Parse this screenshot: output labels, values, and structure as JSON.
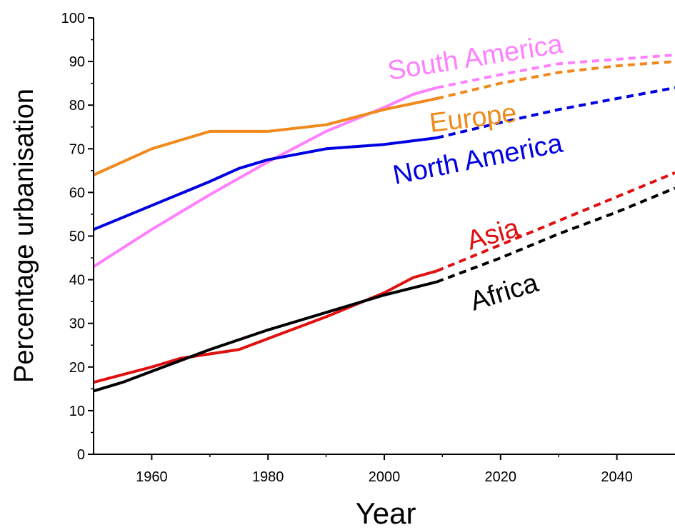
{
  "chart_data": {
    "type": "line",
    "title": "",
    "xlabel": "Year",
    "ylabel": "Percentage urbanisation",
    "xlim": [
      1950,
      2050
    ],
    "ylim": [
      0,
      100
    ],
    "x_ticks": [
      1960,
      1980,
      2000,
      2020,
      2040
    ],
    "y_ticks": [
      0,
      10,
      20,
      30,
      40,
      50,
      60,
      70,
      80,
      90,
      100
    ],
    "grid": false,
    "legend": "inline labels",
    "series": [
      {
        "name": "South America",
        "color": "#ff80ff",
        "observed": [
          [
            1950,
            43
          ],
          [
            1960,
            51.5
          ],
          [
            1970,
            59.5
          ],
          [
            1980,
            67
          ],
          [
            1990,
            74
          ],
          [
            2000,
            79.5
          ],
          [
            2005,
            82.5
          ],
          [
            2009,
            84
          ]
        ],
        "projected": [
          [
            2009,
            84
          ],
          [
            2020,
            87
          ],
          [
            2030,
            89.5
          ],
          [
            2040,
            90.5
          ],
          [
            2050,
            91.5
          ]
        ]
      },
      {
        "name": "Europe",
        "color": "#f08a1c",
        "observed": [
          [
            1950,
            64
          ],
          [
            1960,
            70
          ],
          [
            1970,
            74
          ],
          [
            1980,
            74
          ],
          [
            1990,
            75.5
          ],
          [
            2000,
            79
          ],
          [
            2009,
            81.5
          ]
        ],
        "projected": [
          [
            2009,
            81.5
          ],
          [
            2020,
            85
          ],
          [
            2030,
            87.5
          ],
          [
            2040,
            89
          ],
          [
            2050,
            90
          ]
        ]
      },
      {
        "name": "North America",
        "color": "#0000e0",
        "observed": [
          [
            1950,
            51.5
          ],
          [
            1960,
            57
          ],
          [
            1970,
            62.5
          ],
          [
            1975,
            65.5
          ],
          [
            1980,
            67.5
          ],
          [
            1990,
            70
          ],
          [
            2000,
            71
          ],
          [
            2009,
            72.5
          ]
        ],
        "projected": [
          [
            2009,
            72.5
          ],
          [
            2020,
            76
          ],
          [
            2030,
            79
          ],
          [
            2040,
            81.5
          ],
          [
            2050,
            84
          ]
        ]
      },
      {
        "name": "Asia",
        "color": "#e01010",
        "observed": [
          [
            1950,
            16.5
          ],
          [
            1960,
            20
          ],
          [
            1965,
            22
          ],
          [
            1970,
            23
          ],
          [
            1975,
            24
          ],
          [
            1980,
            26.5
          ],
          [
            1990,
            31.5
          ],
          [
            2000,
            37
          ],
          [
            2005,
            40.5
          ],
          [
            2009,
            42
          ]
        ],
        "projected": [
          [
            2009,
            42
          ],
          [
            2020,
            48
          ],
          [
            2030,
            53.5
          ],
          [
            2040,
            59
          ],
          [
            2050,
            64.5
          ]
        ]
      },
      {
        "name": "Africa",
        "color": "#000000",
        "observed": [
          [
            1950,
            14.5
          ],
          [
            1955,
            16.5
          ],
          [
            1960,
            19
          ],
          [
            1970,
            24
          ],
          [
            1980,
            28.5
          ],
          [
            1990,
            32.5
          ],
          [
            2000,
            36.5
          ],
          [
            2009,
            39.5
          ]
        ],
        "projected": [
          [
            2009,
            39.5
          ],
          [
            2020,
            45
          ],
          [
            2030,
            50.5
          ],
          [
            2040,
            55.5
          ],
          [
            2050,
            61
          ]
        ]
      }
    ]
  }
}
